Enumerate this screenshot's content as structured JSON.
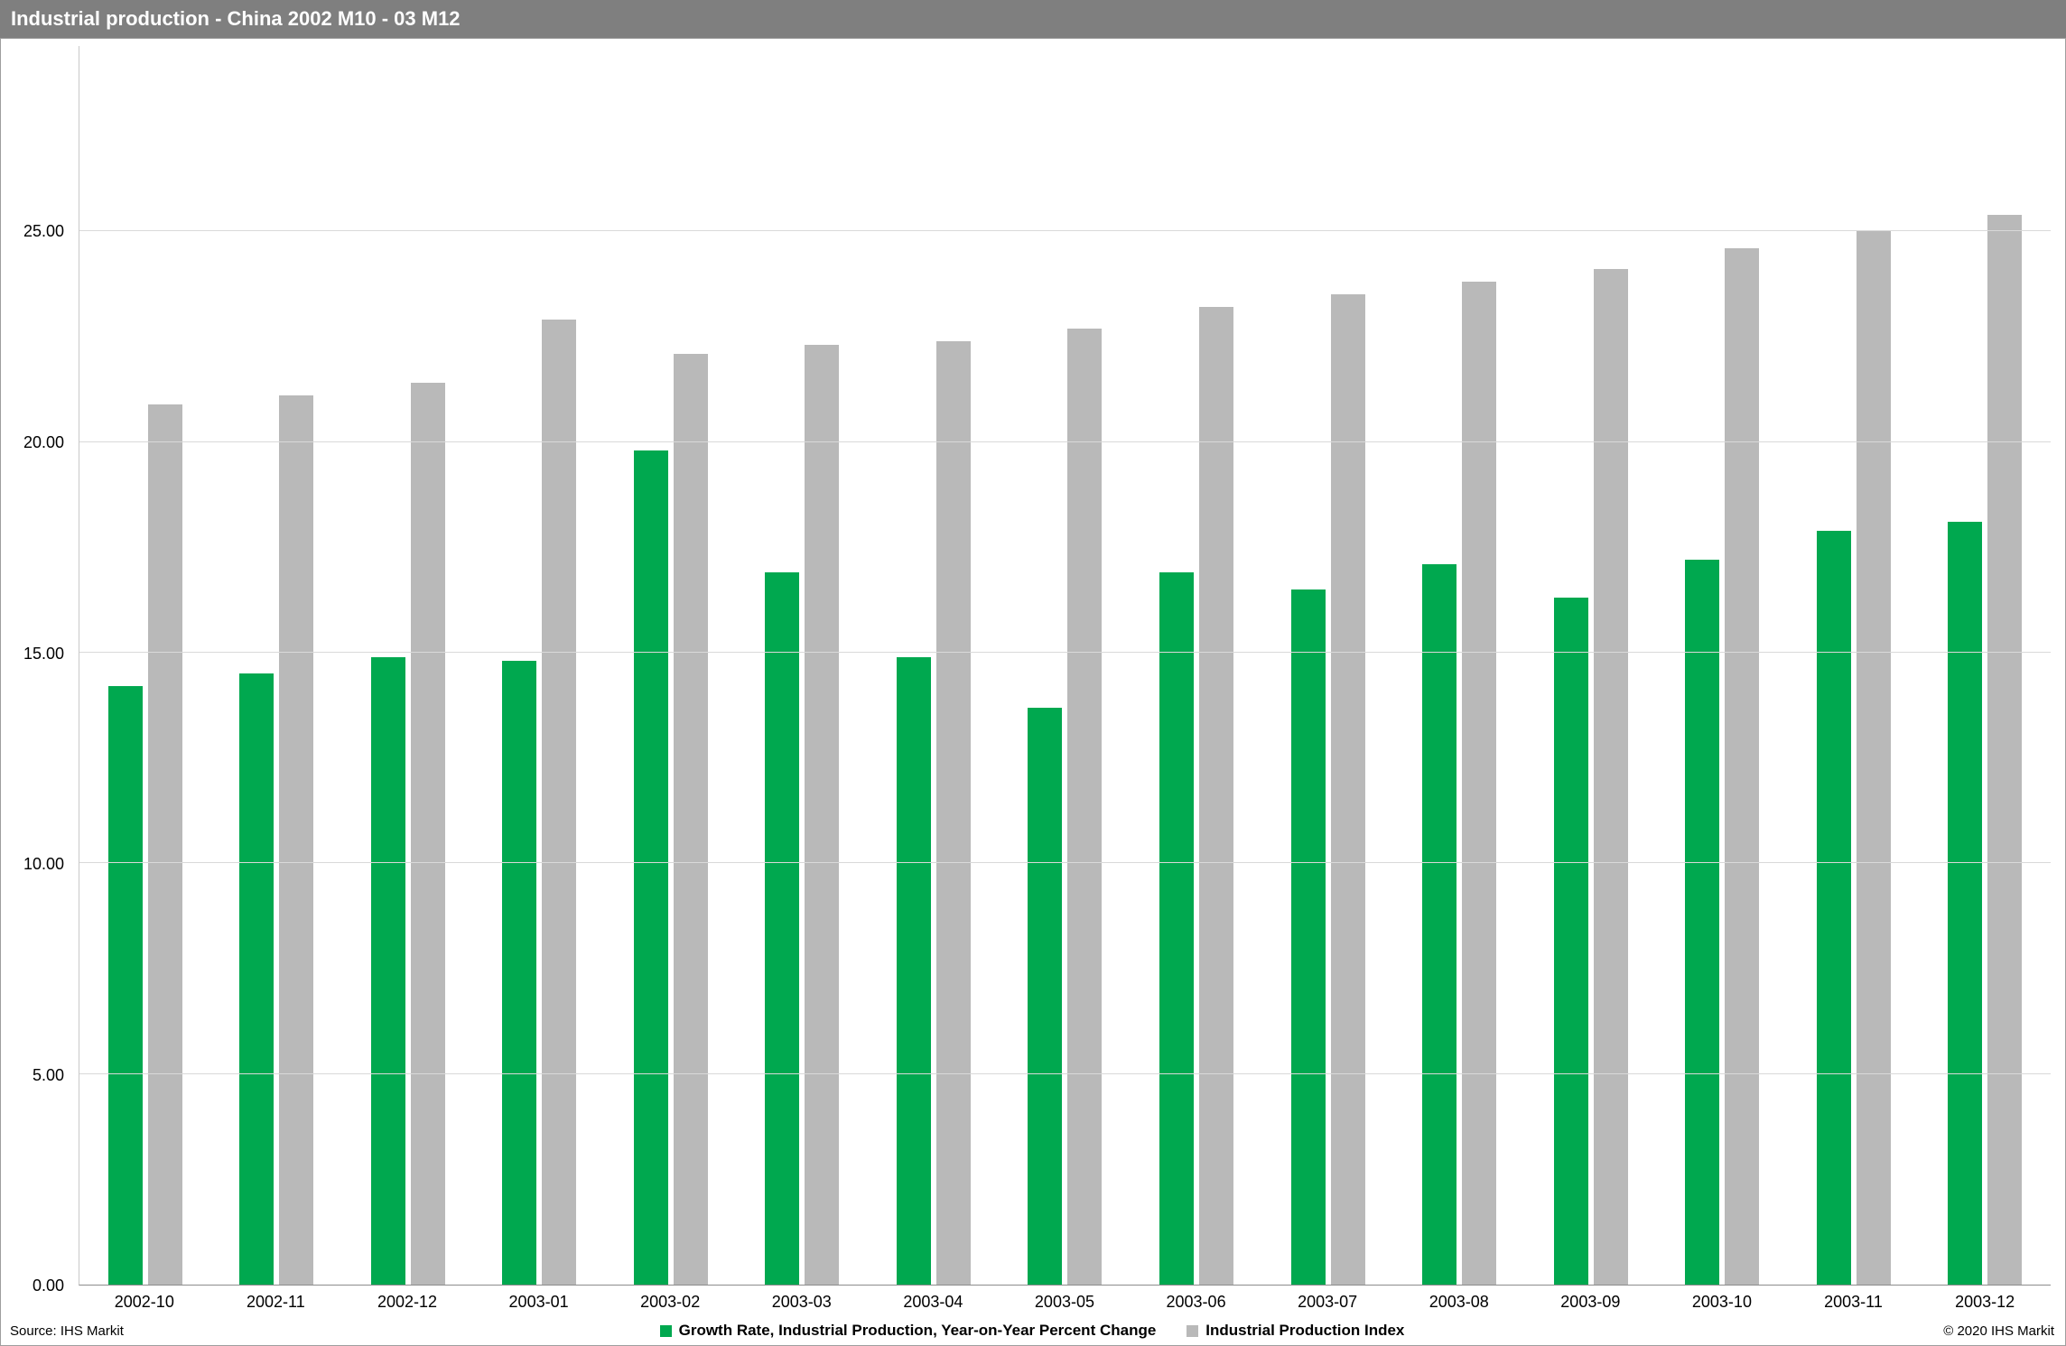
{
  "title_bar": {
    "title": "Industrial production - China 2002 M10 - 03 M12"
  },
  "footer": {
    "source": "Source: IHS Markit",
    "copyright": "© 2020 IHS Markit"
  },
  "chart_data": {
    "type": "bar",
    "title": "Industrial production - China 2002 M10 - 03 M12",
    "categories": [
      "2002-10",
      "2002-11",
      "2002-12",
      "2003-01",
      "2003-02",
      "2003-03",
      "2003-04",
      "2003-05",
      "2003-06",
      "2003-07",
      "2003-08",
      "2003-09",
      "2003-10",
      "2003-11",
      "2003-12"
    ],
    "series": [
      {
        "name": "Growth Rate, Industrial Production, Year-on-Year Percent Change",
        "color": "#00a84f",
        "values": [
          14.2,
          14.5,
          14.9,
          14.8,
          19.8,
          16.9,
          14.9,
          13.7,
          16.9,
          16.5,
          17.1,
          16.3,
          17.2,
          17.9,
          18.1
        ]
      },
      {
        "name": "Industrial Production Index",
        "color": "#b9b9b9",
        "values": [
          20.9,
          21.1,
          21.4,
          22.9,
          22.1,
          22.3,
          22.4,
          22.7,
          23.2,
          23.5,
          23.8,
          24.1,
          24.6,
          25.0,
          25.4
        ]
      }
    ],
    "xlabel": "",
    "ylabel": "",
    "ylim": [
      0,
      29.4
    ],
    "yticks": [
      0,
      5,
      10,
      15,
      20,
      25
    ],
    "ytick_labels": [
      "0.00",
      "5.00",
      "10.00",
      "15.00",
      "20.00",
      "25.00"
    ],
    "grid": true,
    "legend_position": "bottom"
  }
}
